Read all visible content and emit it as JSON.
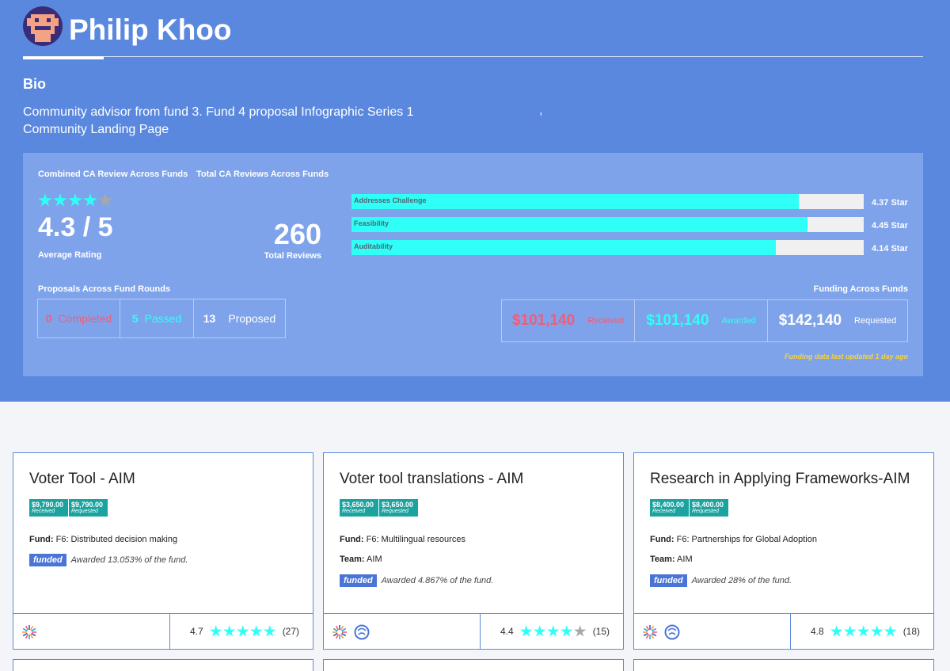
{
  "profile": {
    "name": "Philip Khoo",
    "bio_title": "Bio",
    "bio_line1": "Community advisor from fund 3. Fund 4 proposal Infographic Series 1",
    "bio_line2": "Community Landing Page",
    "bio_comma": ","
  },
  "summary": {
    "combined_label": "Combined CA Review Across Funds",
    "total_label": "Total CA Reviews Across Funds",
    "rating_text": "4.3 / 5",
    "rating_value": 4.3,
    "rating_caption": "Average Rating",
    "total_reviews": "260",
    "total_caption": "Total Reviews",
    "criteria": [
      {
        "label": "Addresses Challenge",
        "value": 4.37,
        "value_text": "4.37 Star"
      },
      {
        "label": "Feasibility",
        "value": 4.45,
        "value_text": "4.45 Star"
      },
      {
        "label": "Auditability",
        "value": 4.14,
        "value_text": "4.14 Star"
      }
    ],
    "proposals_label": "Proposals Across Fund Rounds",
    "proposals": [
      {
        "count": "0",
        "label": "Completed",
        "color": "#f25c78"
      },
      {
        "count": "5",
        "label": "Passed",
        "color": "#2ffff6"
      },
      {
        "count": "13",
        "label": "Proposed",
        "color": "#ffffff"
      }
    ],
    "funding_label": "Funding Across Funds",
    "funding": [
      {
        "amount": "$101,140",
        "label": "Received",
        "color": "#f25c78"
      },
      {
        "amount": "$101,140",
        "label": "Awarded",
        "color": "#2ffff6"
      },
      {
        "amount": "$142,140",
        "label": "Requested",
        "color": "#ffffff"
      }
    ],
    "updated": "Funding data last updated 1 day ago"
  },
  "cards": [
    {
      "title": "Voter Tool - AIM",
      "received": "$9,790.00",
      "requested": "$9,790.00",
      "received_label": "Received",
      "requested_label": "Requested",
      "fund_key": "Fund:",
      "fund": "F6: Distributed decision making",
      "team_key": "",
      "team": "",
      "status": "funded",
      "awarded": "Awarded 13.053% of the fund.",
      "rating": "4.7",
      "rating_value": 4.7,
      "reviews": "(27)"
    },
    {
      "title": "Voter tool translations - AIM",
      "received": "$3,650.00",
      "requested": "$3,650.00",
      "received_label": "Received",
      "requested_label": "Requested",
      "fund_key": "Fund:",
      "fund": "F6: Multilingual resources",
      "team_key": "Team:",
      "team": "AIM",
      "status": "funded",
      "awarded": "Awarded 4.867% of the fund.",
      "rating": "4.4",
      "rating_value": 4.4,
      "reviews": "(15)"
    },
    {
      "title": "Research in Applying Frameworks-AIM",
      "received": "$8,400.00",
      "requested": "$8,400.00",
      "received_label": "Received",
      "requested_label": "Requested",
      "fund_key": "Fund:",
      "fund": "F6: Partnerships for Global Adoption",
      "team_key": "Team:",
      "team": "AIM",
      "status": "funded",
      "awarded": "Awarded 28% of the fund.",
      "rating": "4.8",
      "rating_value": 4.8,
      "reviews": "(18)"
    }
  ],
  "colors": {
    "hero": "#5a88df",
    "panel": "#7fa3ea",
    "accent": "#2ffff6",
    "badge": "#1aa39f",
    "funded": "#4a74d8"
  }
}
